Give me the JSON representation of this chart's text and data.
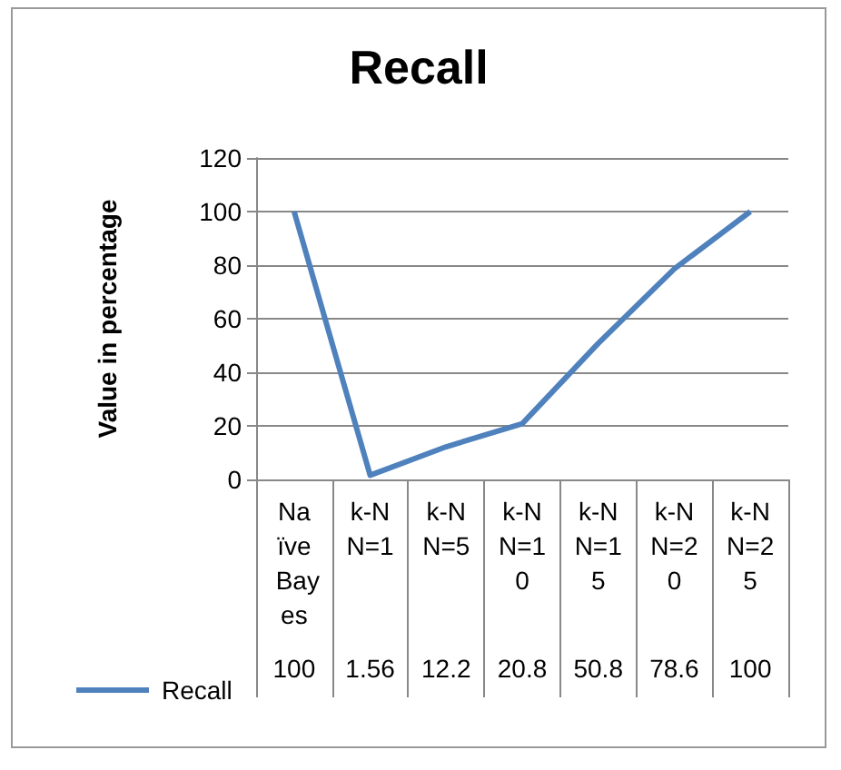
{
  "chart_data": {
    "type": "line",
    "title": "Recall",
    "ylabel": "Value in percentage",
    "categories": [
      "Naïve Bayes",
      "k-NN=1",
      "k-NN=5",
      "k-NN=10",
      "k-NN=15",
      "k-NN=20",
      "k-NN=25"
    ],
    "series": [
      {
        "name": "Recall",
        "color": "#4f81bd",
        "values": [
          100,
          1.56,
          12.2,
          20.8,
          50.8,
          78.6,
          100
        ]
      }
    ],
    "ylim": [
      0,
      120
    ],
    "yticks": [
      0,
      20,
      40,
      60,
      80,
      100,
      120
    ],
    "grid": "y",
    "legend": "bottom left",
    "marker": "none",
    "data_labels": true
  }
}
